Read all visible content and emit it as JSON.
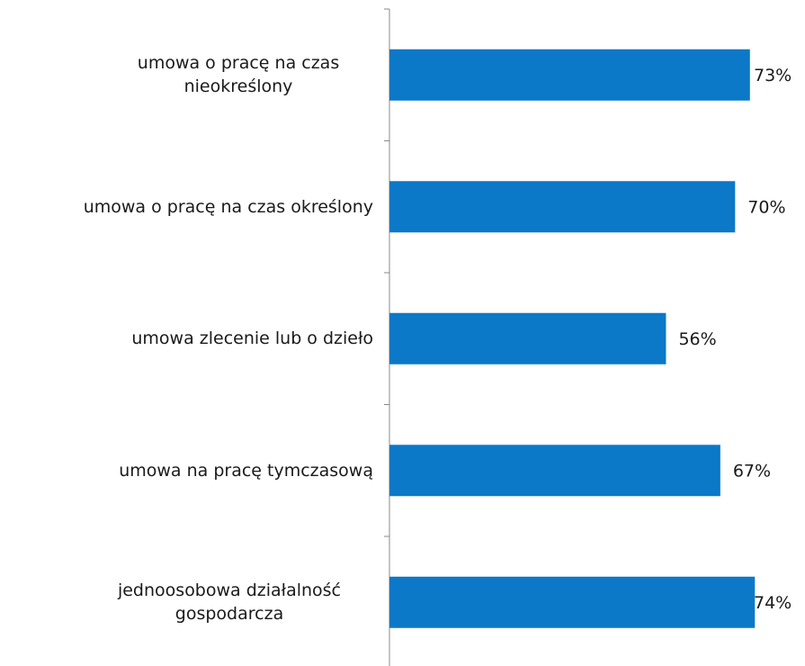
{
  "chart_data": {
    "type": "bar",
    "orientation": "horizontal",
    "categories": [
      "umowa o pracę na czas nieokreślony",
      "umowa o pracę na czas określony",
      "umowa zlecenie lub o dzieło",
      "umowa na pracę tymczasową",
      "jednoosobowa działalność gospodarcza"
    ],
    "values": [
      73,
      70,
      56,
      67,
      74
    ],
    "value_labels": [
      "73%",
      "70%",
      "56%",
      "67%",
      "74%"
    ],
    "color": "#0b78c8"
  }
}
